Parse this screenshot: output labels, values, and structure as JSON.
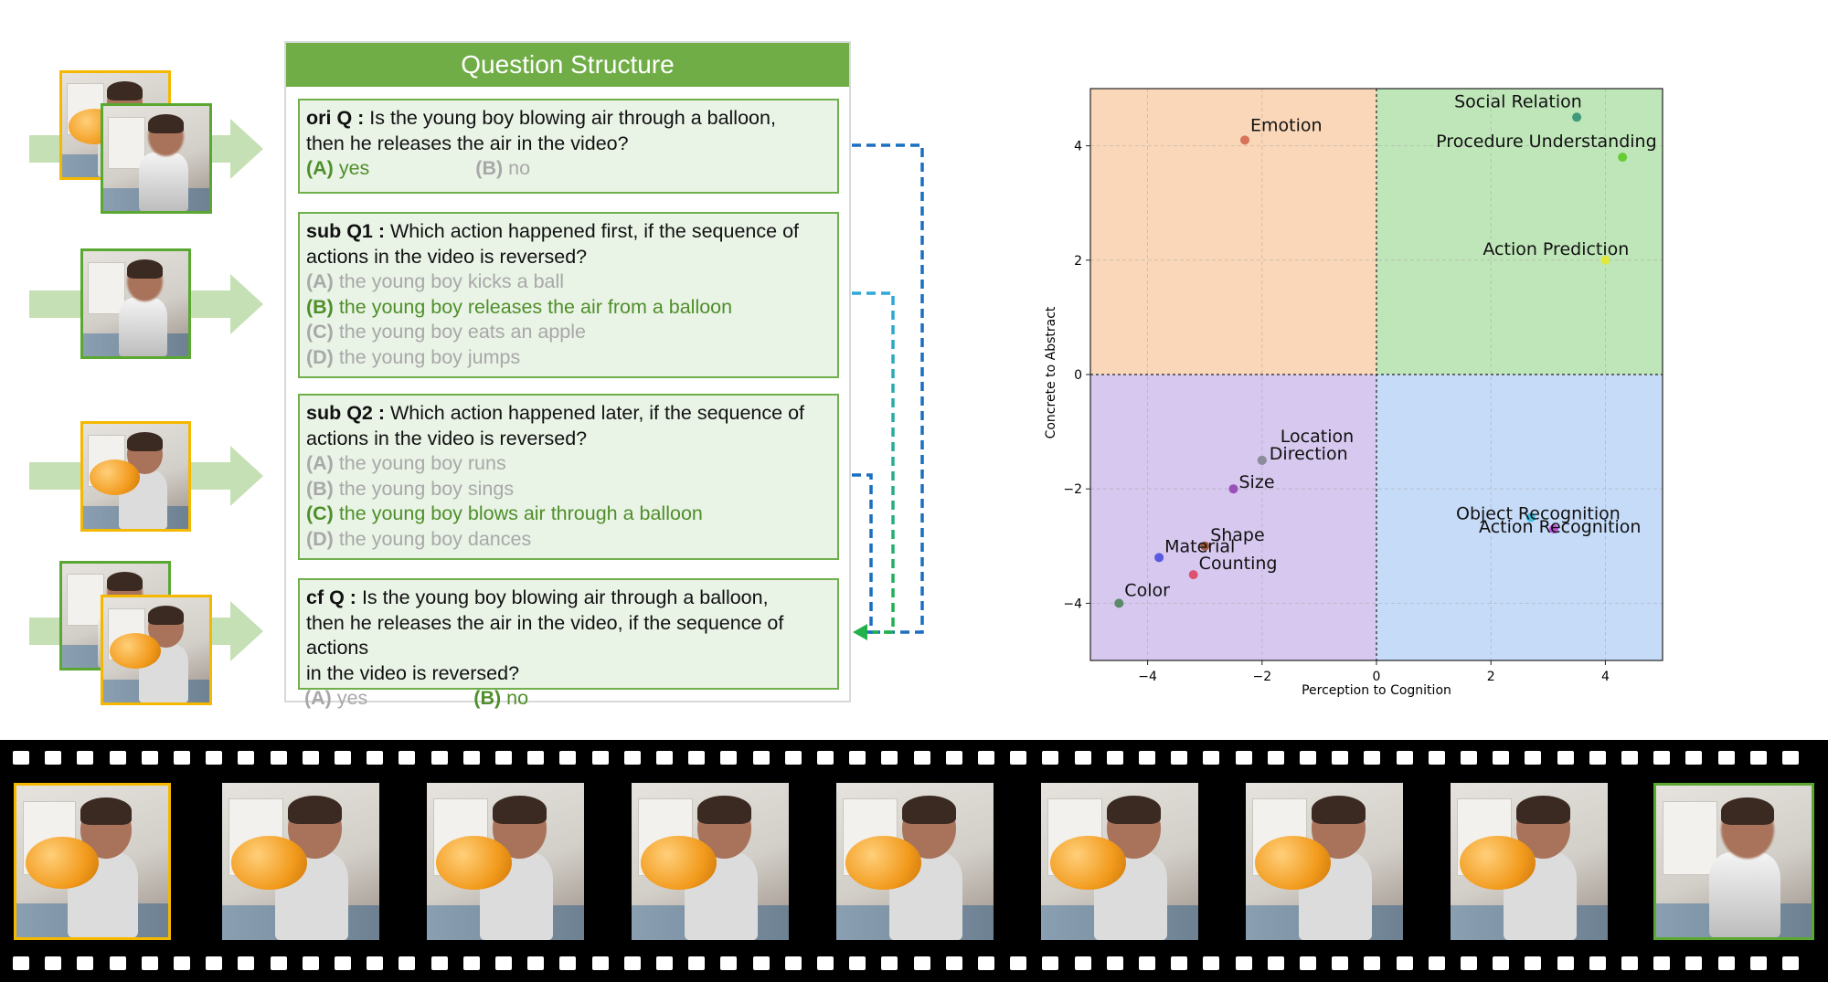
{
  "panel": {
    "title": "Question Structure",
    "questions": [
      {
        "label": "ori Q :",
        "lines": [
          "Is the young boy blowing  air through  a balloon,",
          "then he releases the air in the video?"
        ],
        "inline_options": [
          {
            "letter": "(A)",
            "text": " yes",
            "state": "good"
          },
          {
            "letter": "(B)",
            "text": " no",
            "state": "grey"
          }
        ]
      },
      {
        "label": "sub Q1 :",
        "lines": [
          "Which action happened first, if the sequence of",
          "actions in the video is reversed?"
        ],
        "options": [
          {
            "letter": "(A)",
            "text": " the young  boy  kicks a ball",
            "state": "grey"
          },
          {
            "letter": "(B)",
            "text": " the young  boy releases the air from a balloon",
            "state": "good"
          },
          {
            "letter": "(C)",
            "text": " the young  boy  eats an apple",
            "state": "grey"
          },
          {
            "letter": "(D)",
            "text": " the young  boy  jumps",
            "state": "grey"
          }
        ]
      },
      {
        "label": "sub Q2 :",
        "lines": [
          "Which action happened later, if the sequence of",
          "actions in the video is reversed?"
        ],
        "options": [
          {
            "letter": "(A)",
            "text": " the young  boy  runs",
            "state": "grey"
          },
          {
            "letter": "(B)",
            "text": " the young  boy  sings",
            "state": "grey"
          },
          {
            "letter": "(C)",
            "text": " the young  boy  blows  air through  a balloon",
            "state": "good"
          },
          {
            "letter": "(D)",
            "text": " the young  boy  dances",
            "state": "grey"
          }
        ]
      },
      {
        "label": "cf Q :",
        "lines": [
          "Is the young boy blowing  air through  a balloon,",
          "then he releases the air in the video, if the sequence of",
          "actions",
          "in the video is reversed?"
        ],
        "inline_options": [
          {
            "letter": "(A)",
            "text": " yes",
            "state": "grey"
          },
          {
            "letter": "(B)",
            "text": " no",
            "state": "good"
          }
        ]
      }
    ]
  },
  "colors": {
    "header_green": "#70ad47",
    "box_fill": "#e9f3e6",
    "correct_green": "#4f8f2a",
    "wrong_grey": "#a8a8a8",
    "frame_yellow": "#f5b800",
    "frame_green": "#5aa832",
    "quadrant_orange": "#fad7b8",
    "quadrant_green": "#bfe6b9",
    "quadrant_purple": "#d6c8ee",
    "quadrant_blue": "#c6dbf8"
  },
  "chart_data": {
    "type": "scatter",
    "xlabel": "Perception to Cognition",
    "ylabel": "Concrete to Abstract",
    "xlim": [
      -5,
      5
    ],
    "ylim": [
      -5,
      5
    ],
    "xticks": [
      -4,
      -2,
      0,
      2,
      4
    ],
    "yticks": [
      -4,
      -2,
      0,
      2,
      4
    ],
    "grid": true,
    "points": [
      {
        "label": "Emotion",
        "x": -2.3,
        "y": 4.1,
        "color": "#d8735a"
      },
      {
        "label": "Social Relation",
        "x": 3.5,
        "y": 4.5,
        "color": "#3f9a7a"
      },
      {
        "label": "Procedure Understanding",
        "x": 4.3,
        "y": 3.8,
        "color": "#66cc33"
      },
      {
        "label": "Action Prediction",
        "x": 4.0,
        "y": 2.0,
        "color": "#e0e840"
      },
      {
        "label": "Location",
        "x": -2.0,
        "y": -1.5,
        "color": "#8c8c9c"
      },
      {
        "label": "Direction",
        "x": -2.0,
        "y": -1.5,
        "color": "#8c8c9c"
      },
      {
        "label": "Size",
        "x": -2.5,
        "y": -2.0,
        "color": "#9b4fb8"
      },
      {
        "label": "Shape",
        "x": -3.0,
        "y": -3.0,
        "color": "#a05a40"
      },
      {
        "label": "Material",
        "x": -3.8,
        "y": -3.2,
        "color": "#5a5ae0"
      },
      {
        "label": "Counting",
        "x": -3.2,
        "y": -3.5,
        "color": "#e05070"
      },
      {
        "label": "Color",
        "x": -4.5,
        "y": -4.0,
        "color": "#5a8a6a"
      },
      {
        "label": "Object Recognition",
        "x": 2.7,
        "y": -2.5,
        "color": "#40c0e0"
      },
      {
        "label": "Action Recognition",
        "x": 3.1,
        "y": -2.7,
        "color": "#c050e0"
      }
    ]
  }
}
